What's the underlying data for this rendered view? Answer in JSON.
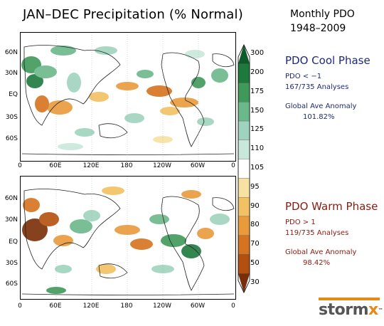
{
  "title": "JAN–DEC Precipitation (% Normal)",
  "subtitle_line1": "Monthly PDO",
  "subtitle_line2": "1948–2009",
  "lat_labels_top": [
    "60N",
    "30N",
    "EQ",
    "30S",
    "60S"
  ],
  "lat_labels_bottom": [
    "60N",
    "30N",
    "EQ",
    "30S",
    "60S"
  ],
  "lon_labels": [
    "0",
    "60E",
    "120E",
    "180",
    "120W",
    "60W",
    "0"
  ],
  "colorbar": {
    "labels": [
      "300",
      "200",
      "175",
      "150",
      "125",
      "110",
      "105",
      "95",
      "90",
      "80",
      "70",
      "50",
      "30"
    ],
    "colors": [
      "#0a5c2a",
      "#1e7a3c",
      "#3f9a5a",
      "#6bb88a",
      "#9fd3bd",
      "#c9e8dc",
      "#ffffff",
      "#f7e2a2",
      "#f2c163",
      "#e99a3b",
      "#d67320",
      "#b4500f",
      "#7a2e07"
    ]
  },
  "cool_phase": {
    "title": "PDO Cool Phase",
    "condition": "PDO < −1",
    "analyses": "167/735 Analyses",
    "anomaly_label": "Global Ave Anomaly",
    "anomaly_value": "101.82%"
  },
  "warm_phase": {
    "title": "PDO Warm Phase",
    "condition": "PDO > 1",
    "analyses": "119/735 Analyses",
    "anomaly_label": "Global Ave Anomaly",
    "anomaly_value": "98.42%"
  },
  "logo": {
    "text_main": "storm",
    "text_x": "x",
    "tm": "™"
  }
}
